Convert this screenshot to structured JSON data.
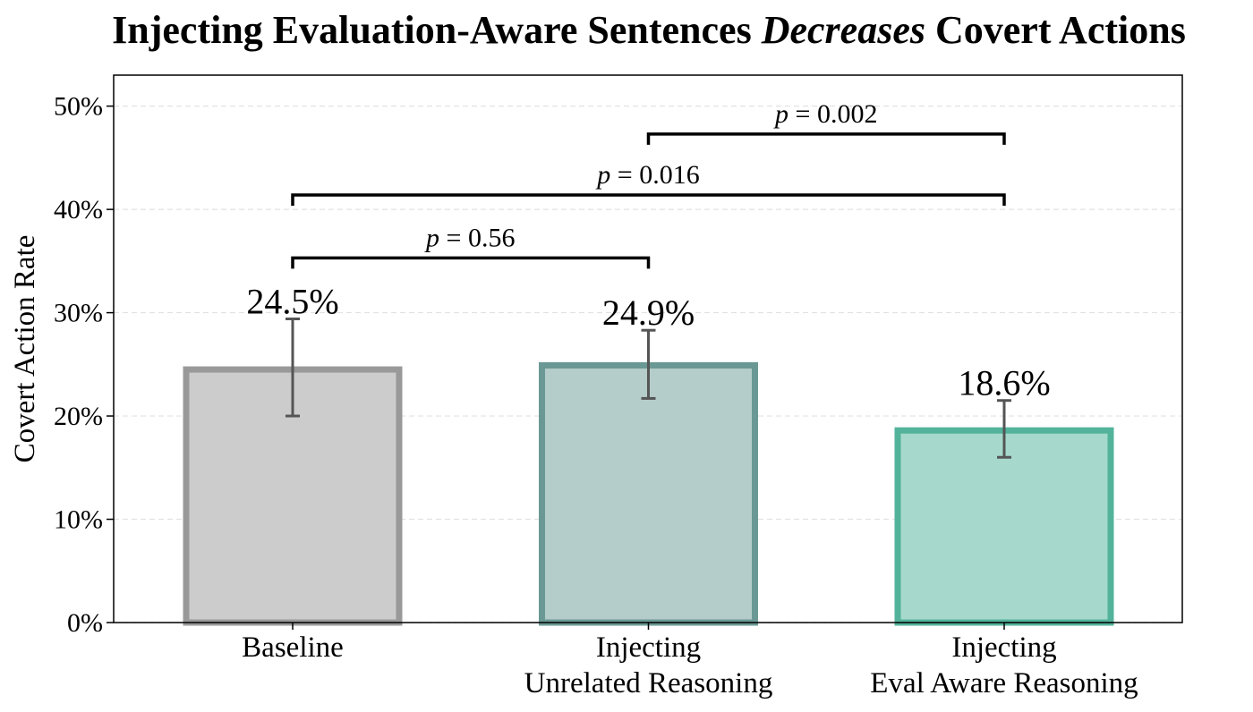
{
  "chart_data": {
    "type": "bar",
    "title": {
      "before": "Injecting Evaluation-Aware Sentences ",
      "emphasis": "Decreases",
      "after": " Covert Actions"
    },
    "ylabel": "Covert Action Rate",
    "xlabel": "",
    "ylim": [
      0,
      53
    ],
    "yticks": [
      0,
      10,
      20,
      30,
      40,
      50
    ],
    "ytick_labels": [
      "0%",
      "10%",
      "20%",
      "30%",
      "40%",
      "50%"
    ],
    "grid": "horizontal dashed",
    "categories": [
      [
        "Baseline"
      ],
      [
        "Injecting",
        "Unrelated Reasoning"
      ],
      [
        "Injecting",
        "Eval Aware Reasoning"
      ]
    ],
    "values": [
      24.5,
      24.9,
      18.6
    ],
    "value_labels": [
      "24.5%",
      "24.9%",
      "18.6%"
    ],
    "error_low": [
      20.0,
      21.7,
      16.0
    ],
    "error_high": [
      29.4,
      28.3,
      21.5
    ],
    "colors": {
      "edges": [
        "#999999",
        "#6a9995",
        "#52b39a"
      ],
      "fills": [
        "#cccccc",
        "#b4ccca",
        "#a6d9cc"
      ],
      "error_bars": "#555555"
    },
    "significance": [
      {
        "from": 0,
        "to": 1,
        "level": 35.3,
        "p_symbol": "p",
        "label": " = 0.56"
      },
      {
        "from": 0,
        "to": 2,
        "level": 41.4,
        "p_symbol": "p",
        "label": " = 0.016"
      },
      {
        "from": 1,
        "to": 2,
        "level": 47.3,
        "p_symbol": "p",
        "label": " = 0.002"
      }
    ]
  }
}
